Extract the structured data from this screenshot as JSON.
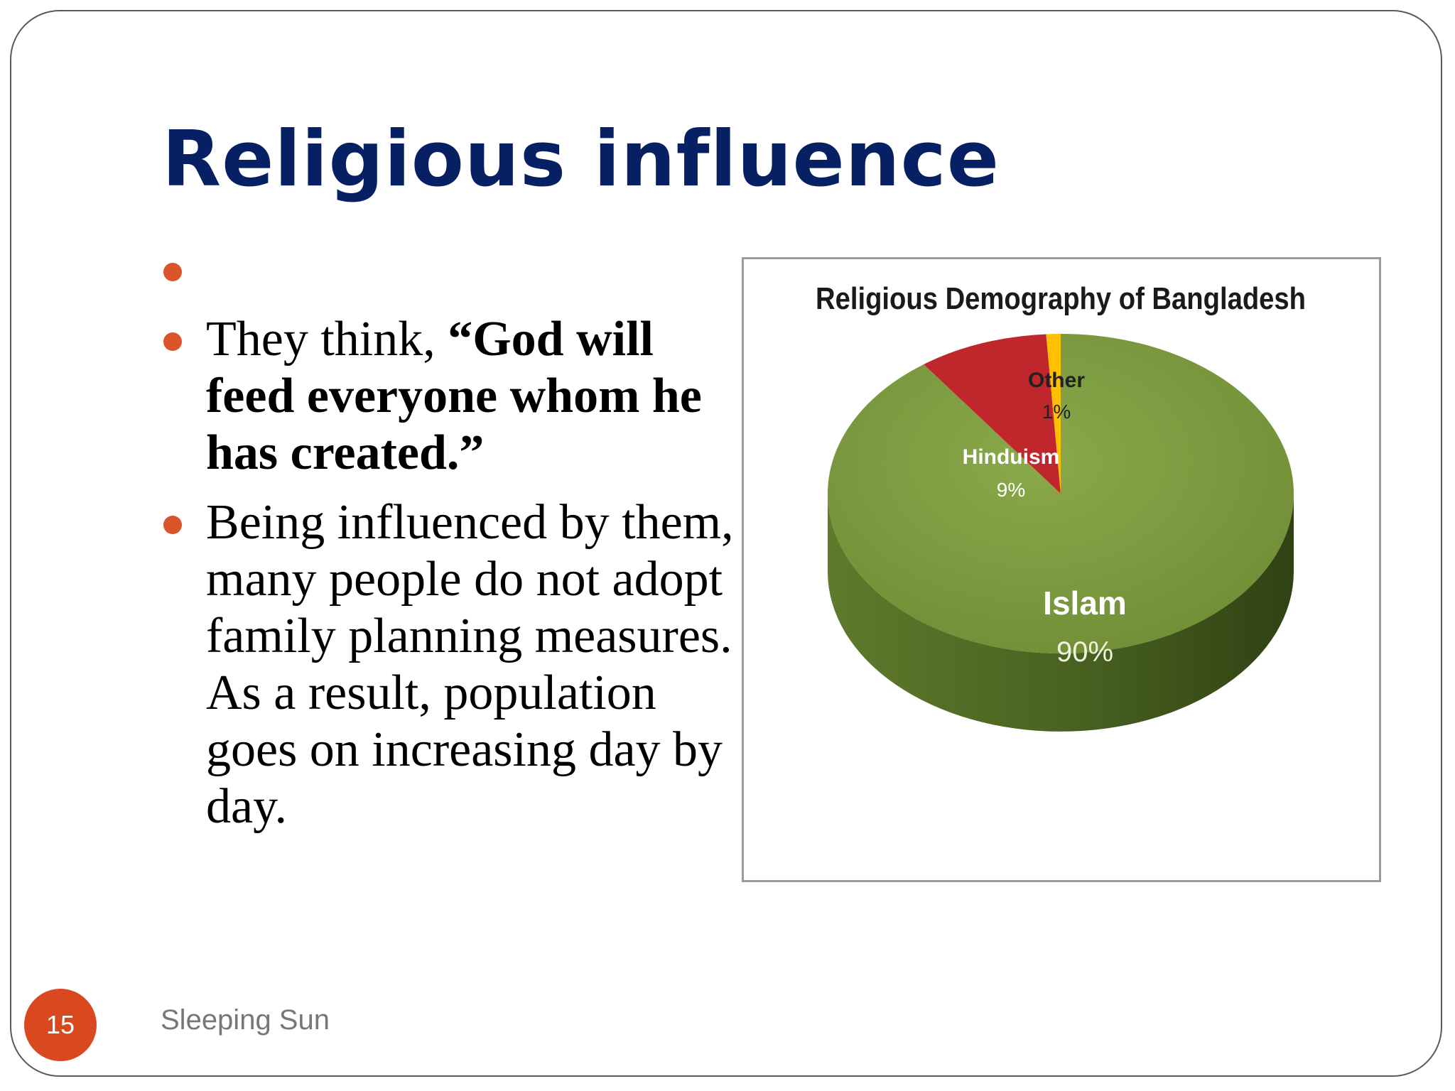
{
  "slide": {
    "title": "Religious influence",
    "bullets": [
      {
        "parts": []
      },
      {
        "parts": [
          {
            "text": "They think, ",
            "bold": false
          },
          {
            "text": "“God will feed everyone whom he has created.”",
            "bold": true
          }
        ]
      },
      {
        "parts": [
          {
            "text": "Being influenced by them, many people do not adopt family planning measures. As a result, population goes on increasing day by day.",
            "bold": false
          }
        ]
      }
    ],
    "page_number": "15",
    "footer": "Sleeping Sun",
    "colors": {
      "title": "#062063",
      "bullet": "#d9532b",
      "badge": "#d9481f"
    }
  },
  "chart_data": {
    "type": "pie",
    "title": "Religious Demography of Bangladesh",
    "slices": [
      {
        "label": "Islam",
        "value": 90,
        "value_label": "90%",
        "color": "#76923c"
      },
      {
        "label": "Hinduism",
        "value": 9,
        "value_label": "9%",
        "color": "#c0272d"
      },
      {
        "label": "Other",
        "value": 1,
        "value_label": "1%",
        "color": "#ffc000"
      }
    ],
    "style": "3d"
  }
}
